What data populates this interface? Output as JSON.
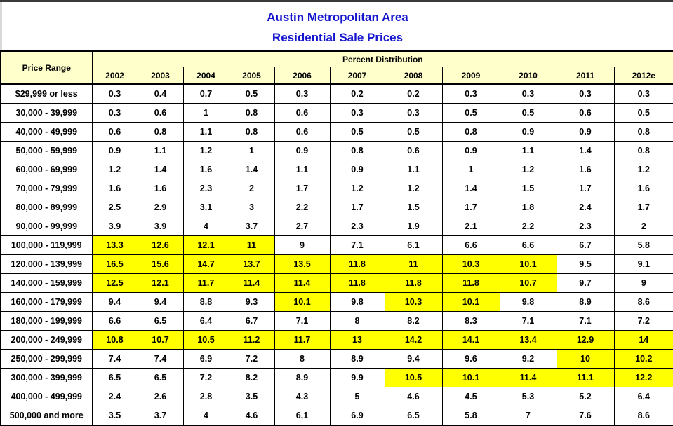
{
  "colors": {
    "title_blue": "#1515CD",
    "header_background": "#FFFFCC",
    "highlight_yellow": "#FFFF00",
    "border_black": "#000000",
    "top_bar_gray": "#3A3A3A"
  },
  "chart_data": {
    "type": "table",
    "title": "Austin Metropolitan Area",
    "subtitle": "Residential Sale Prices",
    "corner_header": "Price Range",
    "group_header": "Percent Distribution",
    "columns": [
      "2002",
      "2003",
      "2004",
      "2005",
      "2006",
      "2007",
      "2008",
      "2009",
      "2010",
      "2011",
      "2012e"
    ],
    "rows": [
      {
        "price_range": "$29,999 or less",
        "values": [
          0.3,
          0.4,
          0.7,
          0.5,
          0.3,
          0.2,
          0.2,
          0.3,
          0.3,
          0.3,
          0.3
        ],
        "highlighted_columns": []
      },
      {
        "price_range": "30,000 - 39,999",
        "values": [
          0.3,
          0.6,
          1,
          0.8,
          0.6,
          0.3,
          0.3,
          0.5,
          0.5,
          0.6,
          0.5
        ],
        "highlighted_columns": []
      },
      {
        "price_range": "40,000 - 49,999",
        "values": [
          0.6,
          0.8,
          1.1,
          0.8,
          0.6,
          0.5,
          0.5,
          0.8,
          0.9,
          0.9,
          0.8
        ],
        "highlighted_columns": []
      },
      {
        "price_range": "50,000 - 59,999",
        "values": [
          0.9,
          1.1,
          1.2,
          1,
          0.9,
          0.8,
          0.6,
          0.9,
          1.1,
          1.4,
          0.8
        ],
        "highlighted_columns": []
      },
      {
        "price_range": "60,000 - 69,999",
        "values": [
          1.2,
          1.4,
          1.6,
          1.4,
          1.1,
          0.9,
          1.1,
          1,
          1.2,
          1.6,
          1.2
        ],
        "highlighted_columns": []
      },
      {
        "price_range": "70,000 - 79,999",
        "values": [
          1.6,
          1.6,
          2.3,
          2,
          1.7,
          1.2,
          1.2,
          1.4,
          1.5,
          1.7,
          1.6
        ],
        "highlighted_columns": []
      },
      {
        "price_range": "80,000 - 89,999",
        "values": [
          2.5,
          2.9,
          3.1,
          3,
          2.2,
          1.7,
          1.5,
          1.7,
          1.8,
          2.4,
          1.7
        ],
        "highlighted_columns": []
      },
      {
        "price_range": "90,000 - 99,999",
        "values": [
          3.9,
          3.9,
          4,
          3.7,
          2.7,
          2.3,
          1.9,
          2.1,
          2.2,
          2.3,
          2
        ],
        "highlighted_columns": []
      },
      {
        "price_range": "100,000 - 119,999",
        "values": [
          13.3,
          12.6,
          12.1,
          11,
          9,
          7.1,
          6.1,
          6.6,
          6.6,
          6.7,
          5.8
        ],
        "highlighted_columns": [
          0,
          1,
          2,
          3
        ]
      },
      {
        "price_range": "120,000 - 139,999",
        "values": [
          16.5,
          15.6,
          14.7,
          13.7,
          13.5,
          11.8,
          11,
          10.3,
          10.1,
          9.5,
          9.1
        ],
        "highlighted_columns": [
          0,
          1,
          2,
          3,
          4,
          5,
          6,
          7,
          8
        ]
      },
      {
        "price_range": "140,000 - 159,999",
        "values": [
          12.5,
          12.1,
          11.7,
          11.4,
          11.4,
          11.8,
          11.8,
          11.8,
          10.7,
          9.7,
          9
        ],
        "highlighted_columns": [
          0,
          1,
          2,
          3,
          4,
          5,
          6,
          7,
          8
        ]
      },
      {
        "price_range": "160,000 - 179,999",
        "values": [
          9.4,
          9.4,
          8.8,
          9.3,
          10.1,
          9.8,
          10.3,
          10.1,
          9.8,
          8.9,
          8.6
        ],
        "highlighted_columns": [
          4,
          6,
          7
        ]
      },
      {
        "price_range": "180,000 - 199,999",
        "values": [
          6.6,
          6.5,
          6.4,
          6.7,
          7.1,
          8,
          8.2,
          8.3,
          7.1,
          7.1,
          7.2
        ],
        "highlighted_columns": []
      },
      {
        "price_range": "200,000 - 249,999",
        "values": [
          10.8,
          10.7,
          10.5,
          11.2,
          11.7,
          13,
          14.2,
          14.1,
          13.4,
          12.9,
          14
        ],
        "highlighted_columns": [
          0,
          1,
          2,
          3,
          4,
          5,
          6,
          7,
          8,
          9,
          10
        ]
      },
      {
        "price_range": "250,000 - 299,999",
        "values": [
          7.4,
          7.4,
          6.9,
          7.2,
          8,
          8.9,
          9.4,
          9.6,
          9.2,
          10,
          10.2
        ],
        "highlighted_columns": [
          9,
          10
        ]
      },
      {
        "price_range": "300,000 - 399,999",
        "values": [
          6.5,
          6.5,
          7.2,
          8.2,
          8.9,
          9.9,
          10.5,
          10.1,
          11.4,
          11.1,
          12.2
        ],
        "highlighted_columns": [
          6,
          7,
          8,
          9,
          10
        ]
      },
      {
        "price_range": "400,000 - 499,999",
        "values": [
          2.4,
          2.6,
          2.8,
          3.5,
          4.3,
          5,
          4.6,
          4.5,
          5.3,
          5.2,
          6.4
        ],
        "highlighted_columns": []
      },
      {
        "price_range": "500,000 and more",
        "values": [
          3.5,
          3.7,
          4,
          4.6,
          6.1,
          6.9,
          6.5,
          5.8,
          7,
          7.6,
          8.6
        ],
        "highlighted_columns": []
      }
    ]
  }
}
